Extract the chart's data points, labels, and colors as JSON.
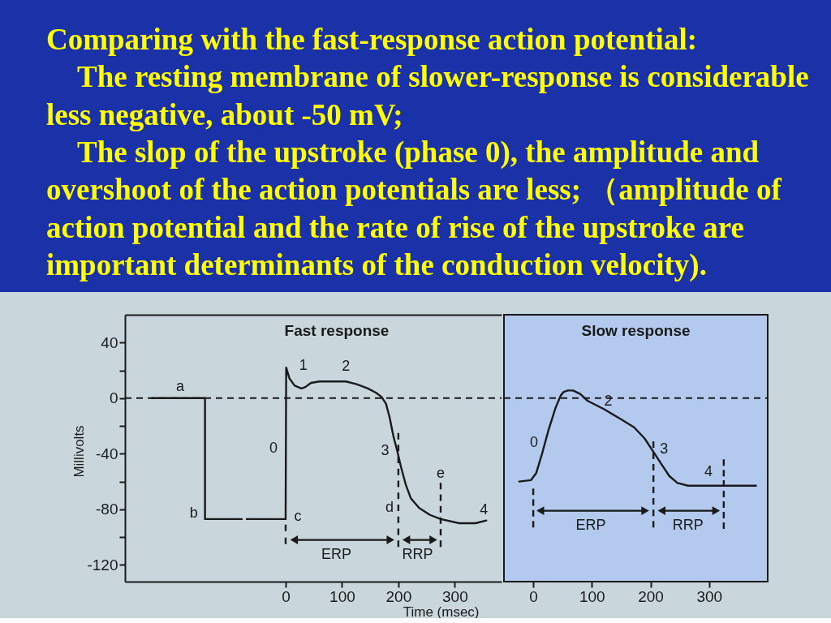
{
  "chart_data": [
    {
      "type": "other",
      "title": "Comparing with the fast-response action potential:",
      "annotations": [
        "The resting membrane of slower-response is considerable less negative, about -50 mV;",
        "The slop of the upstroke (phase 0), the amplitude and overshoot of the action potentials are less; （amplitude of action potential and the rate of rise of the upstroke are important determinants of the conduction velocity)."
      ]
    },
    {
      "type": "line",
      "title": "Fast response",
      "xlabel": "Time (msec)",
      "ylabel": "Millivolts",
      "xlim": [
        -285,
        383
      ],
      "ylim": [
        -132,
        60
      ],
      "xticks": [
        0,
        100,
        200,
        300
      ],
      "yticks": [
        40,
        {
          "value": 20,
          "label": null
        },
        0,
        {
          "value": -20,
          "label": null
        },
        -40,
        {
          "value": -60,
          "label": null
        },
        -80,
        {
          "value": -100,
          "label": null
        },
        -120
      ],
      "series": [
        {
          "color": "#1a1a1a",
          "x": [
            -238,
            -143,
            -143,
            -88
          ],
          "values": [
            0,
            0,
            -87,
            -87
          ]
        },
        {
          "color": "#1a1a1a",
          "line_style": "dashed",
          "x": [
            -88,
            -59
          ],
          "values": [
            -87,
            -87
          ]
        },
        {
          "color": "#1a1a1a",
          "x": [
            -59,
            0,
            1,
            7,
            16,
            28,
            35,
            45,
            60,
            79,
            107,
            126,
            146,
            160,
            170,
            178,
            184,
            191,
            198,
            205,
            213,
            222,
            237,
            256,
            275,
            308,
            337,
            356
          ],
          "values": [
            -87,
            -87,
            22,
            14,
            9,
            7,
            8,
            11,
            12,
            12,
            12,
            10,
            7,
            4,
            1,
            -4,
            -13,
            -27,
            -38,
            -50,
            -62,
            -72,
            -79,
            -84,
            -87,
            -90,
            -90,
            -88
          ]
        },
        {
          "color": "#1a1a1a",
          "line_style": "dashed",
          "x": [
            0,
            0
          ],
          "values": [
            -91,
            -105
          ]
        },
        {
          "color": "#1a1a1a",
          "line_style": "dashed",
          "x": [
            200,
            200
          ],
          "values": [
            -25,
            -107
          ]
        },
        {
          "color": "#1a1a1a",
          "line_style": "dashed",
          "x": [
            275,
            275
          ],
          "values": [
            -61,
            -107
          ]
        },
        {
          "color": "#1a1a1a",
          "marker": "triangle",
          "x": [
            15,
            186
          ],
          "values": [
            -102,
            -102
          ]
        },
        {
          "color": "#1a1a1a",
          "marker": "triangle",
          "x": [
            214,
            262
          ],
          "values": [
            -102,
            -102
          ]
        }
      ],
      "ref_lines": [
        {
          "axis": "y",
          "value": 0,
          "line_style": "dashed",
          "color": "#1a1a1a"
        }
      ],
      "annotations": [
        {
          "text": "a",
          "x": -187,
          "y": 0
        },
        {
          "text": "b",
          "x": -143,
          "y": -87
        },
        {
          "text": "0",
          "x": 0,
          "y": -36
        },
        {
          "text": "c",
          "x": 0,
          "y": -87
        },
        {
          "text": "1",
          "x": 1,
          "y": 22
        },
        {
          "text": "2",
          "x": 107,
          "y": 12
        },
        {
          "text": "3",
          "x": 198,
          "y": -38
        },
        {
          "text": "d",
          "x": 200,
          "y": -79
        },
        {
          "text": "e",
          "x": 275,
          "y": -61
        },
        {
          "text": "4",
          "x": 356,
          "y": -88
        },
        {
          "text": "ERP",
          "x": 90,
          "y": -102
        },
        {
          "text": "RRP",
          "x": 234,
          "y": -102
        }
      ]
    },
    {
      "type": "line",
      "title": "Slow response",
      "xlim": [
        -50,
        400
      ],
      "ylim": [
        -132,
        60
      ],
      "xticks": [
        0,
        100,
        200,
        300
      ],
      "tick_labels": "x",
      "series": [
        {
          "color": "#1a1a1a",
          "x": [
            -24,
            -4,
            5,
            15,
            26,
            38,
            47,
            52,
            59,
            68,
            80,
            93,
            121,
            149,
            172,
            190,
            204,
            218,
            232,
            246,
            264,
            315,
            380
          ],
          "values": [
            -60,
            -59,
            -54,
            -40,
            -23,
            -7,
            2,
            4.5,
            5.5,
            5.5,
            3,
            -2,
            -8,
            -15,
            -21,
            -29,
            -38,
            -47,
            -56,
            -61,
            -63,
            -63,
            -63
          ]
        },
        {
          "color": "#1a1a1a",
          "line_style": "dashed",
          "x": [
            0,
            0
          ],
          "values": [
            -65,
            -93
          ]
        },
        {
          "color": "#1a1a1a",
          "line_style": "dashed",
          "x": [
            205,
            205
          ],
          "values": [
            -31,
            -93
          ]
        },
        {
          "color": "#1a1a1a",
          "line_style": "dashed",
          "x": [
            325,
            325
          ],
          "values": [
            -44,
            -94
          ]
        },
        {
          "color": "#1a1a1a",
          "marker": "triangle",
          "x": [
            12,
            191
          ],
          "values": [
            -81,
            -81
          ]
        },
        {
          "color": "#1a1a1a",
          "marker": "triangle",
          "x": [
            219,
            312
          ],
          "values": [
            -81,
            -81
          ]
        }
      ],
      "ref_lines": [
        {
          "axis": "y",
          "value": 0,
          "line_style": "dashed",
          "color": "#1a1a1a"
        }
      ],
      "annotations": [
        {
          "text": "0",
          "x": 15,
          "y": -40
        },
        {
          "text": "2",
          "x": 121,
          "y": -8
        },
        {
          "text": "3",
          "x": 205,
          "y": -36
        },
        {
          "text": "4",
          "x": 299,
          "y": -63
        },
        {
          "text": "ERP",
          "x": 98,
          "y": -81
        },
        {
          "text": "RRP",
          "x": 264,
          "y": -81
        }
      ]
    }
  ]
}
